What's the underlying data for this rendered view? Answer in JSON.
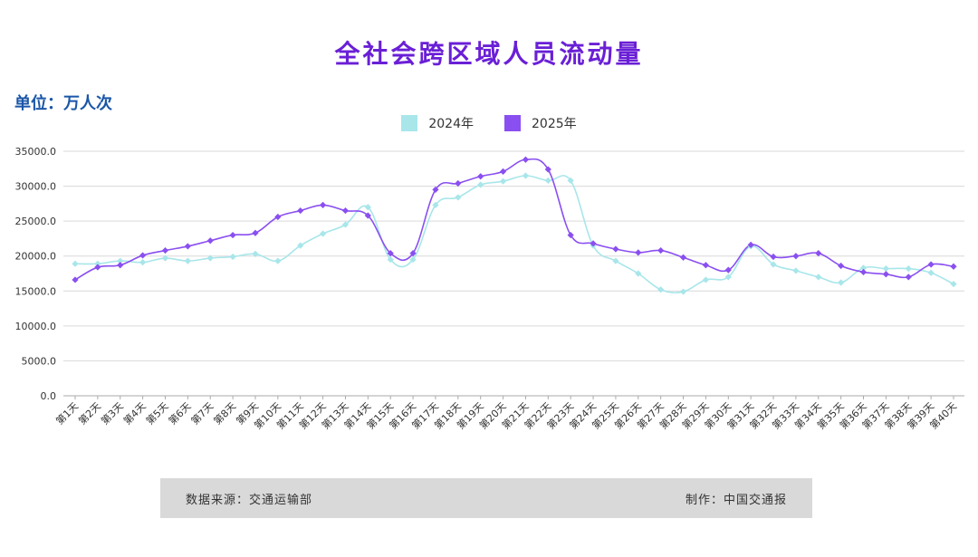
{
  "header": {
    "title": "全社会跨区域人员流动量",
    "unit": "单位：万人次"
  },
  "footer": {
    "source": "数据来源：交通运输部",
    "maker": "制作：中国交通报"
  },
  "colors": {
    "series_2024": "#a8e6ea",
    "series_2025": "#8a4ff0",
    "title": "#6a1fd6",
    "unit": "#1a56a8",
    "grid": "#d9d9d9"
  },
  "chart_data": {
    "type": "line",
    "title": "全社会跨区域人员流动量",
    "ylabel": "单位：万人次",
    "xlabel": "",
    "ylim": [
      0,
      35000
    ],
    "yticks": [
      "0.0",
      "5000.0",
      "10000.0",
      "15000.0",
      "20000.0",
      "25000.0",
      "30000.0",
      "35000.0"
    ],
    "grid": true,
    "legend_position": "top-center",
    "categories": [
      "第1天",
      "第2天",
      "第3天",
      "第4天",
      "第5天",
      "第6天",
      "第7天",
      "第8天",
      "第9天",
      "第10天",
      "第11天",
      "第12天",
      "第13天",
      "第14天",
      "第15天",
      "第16天",
      "第17天",
      "第18天",
      "第19天",
      "第20天",
      "第21天",
      "第22天",
      "第23天",
      "第24天",
      "第25天",
      "第26天",
      "第27天",
      "第28天",
      "第29天",
      "第30天",
      "第31天",
      "第32天",
      "第33天",
      "第34天",
      "第35天",
      "第36天",
      "第37天",
      "第38天",
      "第39天",
      "第40天"
    ],
    "series": [
      {
        "name": "2024年",
        "values": [
          18900,
          18900,
          19300,
          19100,
          19700,
          19300,
          19700,
          19900,
          20300,
          19300,
          21500,
          23200,
          24500,
          27000,
          19500,
          19500,
          27300,
          28400,
          30200,
          30700,
          31500,
          30800,
          30800,
          21500,
          19300,
          17500,
          15200,
          14900,
          16600,
          17000,
          21400,
          18800,
          17900,
          17000,
          16200,
          18300,
          18200,
          18200,
          17600,
          16000
        ]
      },
      {
        "name": "2025年",
        "values": [
          16600,
          18400,
          18700,
          20100,
          20800,
          21400,
          22200,
          23000,
          23300,
          25600,
          26500,
          27300,
          26500,
          25800,
          20400,
          20400,
          29500,
          30400,
          31400,
          32100,
          33800,
          32400,
          23000,
          21800,
          21000,
          20500,
          20800,
          19800,
          18700,
          18000,
          21600,
          19900,
          20000,
          20400,
          18600,
          17700,
          17400,
          17000,
          18800,
          18500
        ]
      }
    ]
  }
}
